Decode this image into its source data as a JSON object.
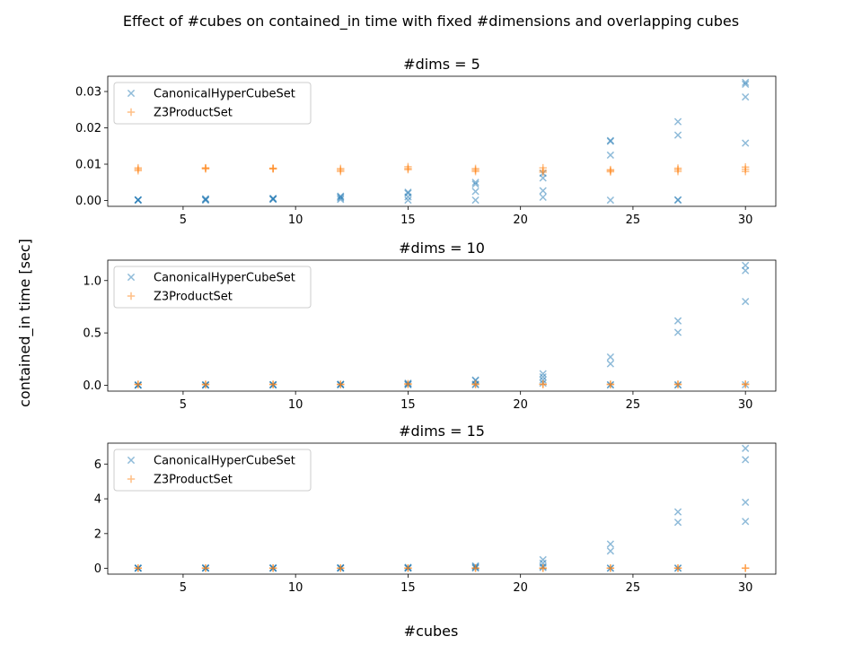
{
  "chart_data": {
    "type": "scatter",
    "title": "Effect of #cubes on contained_in time with fixed #dimensions and overlapping cubes",
    "xlabel": "#cubes",
    "ylabel": "contained_in time [sec]",
    "colors": {
      "CanonicalHyperCubeSet": "#1f77b4",
      "Z3ProductSet": "#ff7f0e"
    },
    "subplots": [
      {
        "title": "#dims = 5",
        "xlim": [
          1.65,
          31.35
        ],
        "ylim": [
          -0.0016,
          0.0342
        ],
        "xticks": [
          5,
          10,
          15,
          20,
          25,
          30
        ],
        "xtick_labels": [
          "5",
          "10",
          "15",
          "20",
          "25",
          "30"
        ],
        "yticks": [
          0,
          0.01,
          0.02,
          0.03
        ],
        "ytick_labels": [
          "0.00",
          "0.01",
          "0.02",
          "0.03"
        ],
        "legend": [
          "CanonicalHyperCubeSet",
          "Z3ProductSet"
        ],
        "series": [
          {
            "name": "CanonicalHyperCubeSet",
            "marker": "x",
            "points": [
              [
                3,
                0.0001
              ],
              [
                3,
                0.0002
              ],
              [
                3,
                0.0001
              ],
              [
                3,
                0.0002
              ],
              [
                6,
                0.0005
              ],
              [
                6,
                0.0001
              ],
              [
                6,
                0.0002
              ],
              [
                6,
                0.0003
              ],
              [
                9,
                0.0005
              ],
              [
                9,
                0.0003
              ],
              [
                9,
                0.0006
              ],
              [
                9,
                0.0004
              ],
              [
                12,
                0.0012
              ],
              [
                12,
                0.0003
              ],
              [
                12,
                0.0007
              ],
              [
                12,
                0.001
              ],
              [
                15,
                0.0023
              ],
              [
                15,
                0.002
              ],
              [
                15,
                0.001
              ],
              [
                15,
                0.0001
              ],
              [
                18,
                0.005
              ],
              [
                18,
                0.0045
              ],
              [
                18,
                0.0025
              ],
              [
                18,
                0.0001
              ],
              [
                21,
                0.0075
              ],
              [
                21,
                0.0062
              ],
              [
                21,
                0.0027
              ],
              [
                21,
                0.0009
              ],
              [
                24,
                0.0165
              ],
              [
                24,
                0.0163
              ],
              [
                24,
                0.0125
              ],
              [
                24,
                0.0001
              ],
              [
                27,
                0.0217
              ],
              [
                27,
                0.018
              ],
              [
                27,
                0.0002
              ],
              [
                27,
                0.0001
              ],
              [
                30,
                0.0325
              ],
              [
                30,
                0.032
              ],
              [
                30,
                0.0285
              ],
              [
                30,
                0.0158
              ]
            ]
          },
          {
            "name": "Z3ProductSet",
            "marker": "+",
            "points": [
              [
                3,
                0.009
              ],
              [
                3,
                0.0082
              ],
              [
                3,
                0.0086
              ],
              [
                6,
                0.009
              ],
              [
                6,
                0.0087
              ],
              [
                6,
                0.0089
              ],
              [
                9,
                0.0089
              ],
              [
                9,
                0.0087
              ],
              [
                9,
                0.0088
              ],
              [
                12,
                0.0088
              ],
              [
                12,
                0.008
              ],
              [
                12,
                0.0084
              ],
              [
                15,
                0.0093
              ],
              [
                15,
                0.0088
              ],
              [
                15,
                0.0085
              ],
              [
                18,
                0.0088
              ],
              [
                18,
                0.008
              ],
              [
                18,
                0.0084
              ],
              [
                21,
                0.009
              ],
              [
                21,
                0.0078
              ],
              [
                21,
                0.0083
              ],
              [
                24,
                0.0085
              ],
              [
                24,
                0.0079
              ],
              [
                24,
                0.0082
              ],
              [
                27,
                0.0089
              ],
              [
                27,
                0.008
              ],
              [
                27,
                0.0085
              ],
              [
                30,
                0.0092
              ],
              [
                30,
                0.008
              ],
              [
                30,
                0.0086
              ]
            ]
          }
        ]
      },
      {
        "title": "#dims = 10",
        "xlim": [
          1.65,
          31.35
        ],
        "ylim": [
          -0.056,
          1.195
        ],
        "xticks": [
          5,
          10,
          15,
          20,
          25,
          30
        ],
        "xtick_labels": [
          "5",
          "10",
          "15",
          "20",
          "25",
          "30"
        ],
        "yticks": [
          0,
          0.5,
          1.0
        ],
        "ytick_labels": [
          "0.0",
          "0.5",
          "1.0"
        ],
        "legend": [
          "CanonicalHyperCubeSet",
          "Z3ProductSet"
        ],
        "series": [
          {
            "name": "CanonicalHyperCubeSet",
            "marker": "x",
            "points": [
              [
                3,
                0.002
              ],
              [
                3,
                0.003
              ],
              [
                3,
                0.001
              ],
              [
                3,
                0.002
              ],
              [
                6,
                0.004
              ],
              [
                6,
                0.003
              ],
              [
                6,
                0.002
              ],
              [
                6,
                0.003
              ],
              [
                9,
                0.006
              ],
              [
                9,
                0.004
              ],
              [
                9,
                0.003
              ],
              [
                9,
                0.005
              ],
              [
                12,
                0.01
              ],
              [
                12,
                0.008
              ],
              [
                12,
                0.004
              ],
              [
                12,
                0.006
              ],
              [
                15,
                0.02
              ],
              [
                15,
                0.015
              ],
              [
                15,
                0.008
              ],
              [
                15,
                0.005
              ],
              [
                18,
                0.05
              ],
              [
                18,
                0.045
              ],
              [
                18,
                0.01
              ],
              [
                18,
                0.005
              ],
              [
                21,
                0.11
              ],
              [
                21,
                0.08
              ],
              [
                21,
                0.05
              ],
              [
                21,
                0.02
              ],
              [
                24,
                0.27
              ],
              [
                24,
                0.205
              ],
              [
                24,
                0.005
              ],
              [
                24,
                0.003
              ],
              [
                27,
                0.615
              ],
              [
                27,
                0.505
              ],
              [
                27,
                0.004
              ],
              [
                27,
                0.003
              ],
              [
                30,
                1.145
              ],
              [
                30,
                1.095
              ],
              [
                30,
                0.8
              ],
              [
                30,
                0.005
              ]
            ]
          },
          {
            "name": "Z3ProductSet",
            "marker": "+",
            "points": [
              [
                3,
                0.01
              ],
              [
                3,
                0.006
              ],
              [
                6,
                0.01
              ],
              [
                6,
                0.005
              ],
              [
                9,
                0.01
              ],
              [
                9,
                0.006
              ],
              [
                12,
                0.01
              ],
              [
                12,
                0.006
              ],
              [
                15,
                0.015
              ],
              [
                15,
                0.008
              ],
              [
                18,
                0.012
              ],
              [
                18,
                0.007
              ],
              [
                21,
                0.012
              ],
              [
                21,
                0.007
              ],
              [
                24,
                0.011
              ],
              [
                24,
                0.006
              ],
              [
                27,
                0.011
              ],
              [
                27,
                0.006
              ],
              [
                30,
                0.012
              ],
              [
                30,
                0.007
              ]
            ]
          }
        ]
      },
      {
        "title": "#dims = 15",
        "xlim": [
          1.65,
          31.35
        ],
        "ylim": [
          -0.33,
          7.2
        ],
        "xticks": [
          5,
          10,
          15,
          20,
          25,
          30
        ],
        "xtick_labels": [
          "5",
          "10",
          "15",
          "20",
          "25",
          "30"
        ],
        "yticks": [
          0,
          2,
          4,
          6
        ],
        "ytick_labels": [
          "0",
          "2",
          "4",
          "6"
        ],
        "legend": [
          "CanonicalHyperCubeSet",
          "Z3ProductSet"
        ],
        "series": [
          {
            "name": "CanonicalHyperCubeSet",
            "marker": "x",
            "points": [
              [
                3,
                0.01
              ],
              [
                3,
                0.02
              ],
              [
                3,
                0.01
              ],
              [
                3,
                0.02
              ],
              [
                6,
                0.02
              ],
              [
                6,
                0.01
              ],
              [
                6,
                0.02
              ],
              [
                6,
                0.03
              ],
              [
                9,
                0.03
              ],
              [
                9,
                0.02
              ],
              [
                9,
                0.01
              ],
              [
                9,
                0.02
              ],
              [
                12,
                0.04
              ],
              [
                12,
                0.02
              ],
              [
                12,
                0.03
              ],
              [
                12,
                0.01
              ],
              [
                15,
                0.06
              ],
              [
                15,
                0.04
              ],
              [
                15,
                0.02
              ],
              [
                15,
                0.01
              ],
              [
                18,
                0.15
              ],
              [
                18,
                0.1
              ],
              [
                18,
                0.05
              ],
              [
                18,
                0.02
              ],
              [
                21,
                0.5
              ],
              [
                21,
                0.3
              ],
              [
                21,
                0.1
              ],
              [
                21,
                0.05
              ],
              [
                24,
                1.4
              ],
              [
                24,
                1.0
              ],
              [
                24,
                0.02
              ],
              [
                24,
                0.01
              ],
              [
                27,
                3.25
              ],
              [
                27,
                2.65
              ],
              [
                27,
                0.02
              ],
              [
                27,
                0.01
              ],
              [
                30,
                6.9
              ],
              [
                30,
                6.25
              ],
              [
                30,
                3.8
              ],
              [
                30,
                2.7
              ]
            ]
          },
          {
            "name": "Z3ProductSet",
            "marker": "+",
            "points": [
              [
                3,
                0.02
              ],
              [
                3,
                0.01
              ],
              [
                6,
                0.02
              ],
              [
                6,
                0.01
              ],
              [
                9,
                0.02
              ],
              [
                9,
                0.01
              ],
              [
                12,
                0.02
              ],
              [
                12,
                0.01
              ],
              [
                15,
                0.02
              ],
              [
                15,
                0.01
              ],
              [
                18,
                0.02
              ],
              [
                18,
                0.01
              ],
              [
                21,
                0.02
              ],
              [
                21,
                0.01
              ],
              [
                24,
                0.02
              ],
              [
                24,
                0.01
              ],
              [
                27,
                0.02
              ],
              [
                27,
                0.01
              ],
              [
                30,
                0.02
              ],
              [
                30,
                0.01
              ]
            ]
          }
        ]
      }
    ]
  }
}
